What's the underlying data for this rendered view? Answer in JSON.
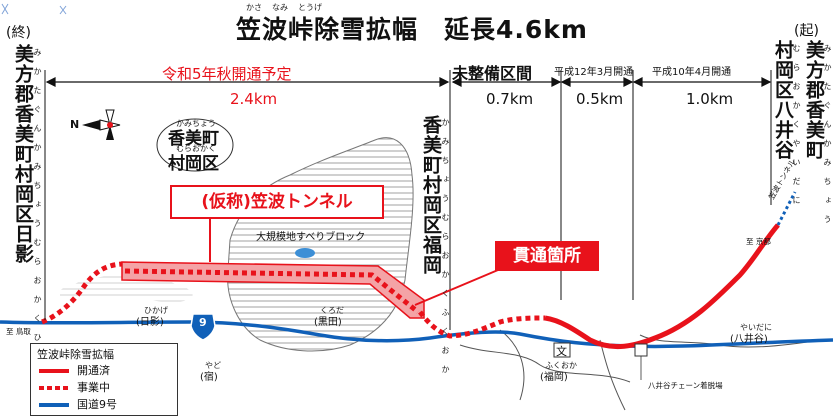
{
  "title": "笠波峠除雪拡幅　延長4.6km",
  "title_ruby": [
    "かさ",
    "なみ",
    "とうげ"
  ],
  "sections": {
    "planned": "令和5年秋開通予定",
    "planned_length": "2.4km",
    "unfinished": "未整備区間",
    "unfinished_length": "0.7km",
    "h12": "平成12年3月開通",
    "h12_length": "0.5km",
    "h10": "平成10年4月開通",
    "h10_length": "1.0km"
  },
  "ends": {
    "left_label": "(終)",
    "left_place": "美方郡香美町村岡区日影",
    "left_ruby": "みかたぐんかみちょうむらおかくひかげ",
    "right_label": "(起)",
    "right_place_1": "美方郡香美町",
    "right_place_1_ruby": "みかたぐんかみちょう",
    "right_place_2": "村岡区八井谷",
    "right_place_2_ruby": "むらおかくやいだに",
    "mid_place": "香美町村岡区福岡",
    "mid_ruby": "かみちょうむらおかくふくおか"
  },
  "map_labels": {
    "district_1": "香美町",
    "district_2": "村岡区",
    "district_ruby_1": "かみちょう",
    "district_ruby_2": "むらおかく",
    "landslide": "大規模地すべりブロック",
    "hikage_ruby": "ひかげ",
    "hikage": "(日影)",
    "kuroda_ruby": "くろだ",
    "kuroda": "(黒田)",
    "yado_ruby": "やど",
    "yado": "(宿)",
    "fukuoka_ruby": "ふくおか",
    "fukuoka": "(福岡)",
    "yaidani_ruby": "やいだに",
    "yaidani": "(八井谷)",
    "to_tottori": "至 鳥取",
    "to_kyoto": "至 京都",
    "chain_area": "八井谷チェーン着脱場",
    "tunnel_name": "(仮称)笠波トンネル",
    "breakthrough": "貫通箇所",
    "route_shield": "9",
    "school_mark": "文",
    "existing_tunnel": "笠波トンネル",
    "north_mark": "N"
  },
  "legend": {
    "title": "笠波峠除雪拡幅",
    "opened": "開通済",
    "under_construction": "事業中",
    "national_route": "国道9号"
  },
  "colors": {
    "opened": "#e8121b",
    "under_construction": "#e8121b",
    "national_route": "#1060b8",
    "tunnel_fill": "#f4a3a6"
  }
}
